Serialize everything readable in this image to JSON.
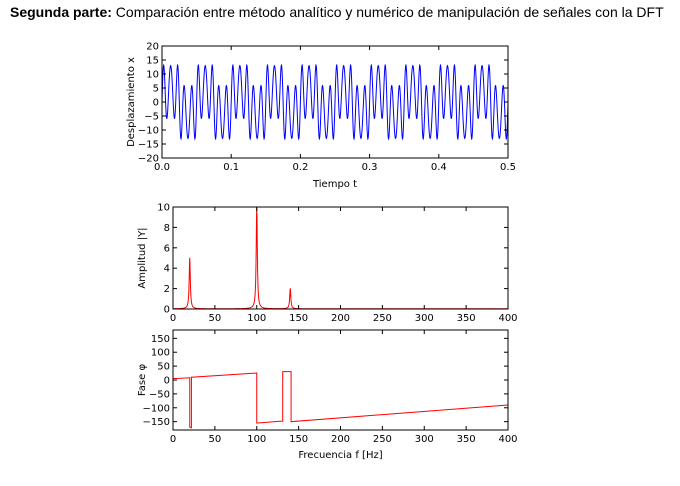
{
  "heading": {
    "bold": "Segunda parte:",
    "rest": "Comparación entre método analítico y numérico de manipulación de señales con la DFT"
  },
  "colors": {
    "signal": "#0000ff",
    "spectrum": "#ff0000"
  },
  "chart_data": [
    {
      "type": "line",
      "xlabel": "Tiempo t",
      "ylabel": "Desplazamiento x",
      "xlim": [
        0,
        0.5
      ],
      "ylim": [
        -20,
        20
      ],
      "xticks": [
        "0.0",
        "0.1",
        "0.2",
        "0.3",
        "0.4",
        "0.5"
      ],
      "yticks": [
        "20",
        "15",
        "10",
        "5",
        "0",
        "−5",
        "−10",
        "−15",
        "−20"
      ],
      "series": [
        {
          "components": [
            {
              "amplitude": 5,
              "frequency_hz": 20
            },
            {
              "amplitude": 10,
              "frequency_hz": 100
            },
            {
              "amplitude": 2,
              "frequency_hz": 140
            }
          ]
        }
      ]
    },
    {
      "type": "line",
      "xlabel": "",
      "ylabel": "Amplitud |Y|",
      "xlim": [
        0,
        400
      ],
      "ylim": [
        0,
        10
      ],
      "xticks": [
        "0",
        "50",
        "100",
        "150",
        "200",
        "250",
        "300",
        "350",
        "400"
      ],
      "yticks": [
        "10",
        "8",
        "6",
        "4",
        "2",
        "0"
      ],
      "series": [
        {
          "peaks": [
            {
              "x": 20,
              "y": 5
            },
            {
              "x": 100,
              "y": 10
            },
            {
              "x": 140,
              "y": 2
            }
          ]
        }
      ]
    },
    {
      "type": "line",
      "xlabel": "Frecuencia f [Hz]",
      "ylabel": "Fase φ",
      "xlim": [
        0,
        400
      ],
      "ylim": [
        -180,
        180
      ],
      "xticks": [
        "0",
        "50",
        "100",
        "150",
        "200",
        "250",
        "300",
        "350",
        "400"
      ],
      "yticks": [
        "150",
        "100",
        "50",
        "0",
        "−50",
        "−100",
        "−150"
      ],
      "series": [
        {
          "x": [
            0,
            15,
            20,
            20,
            21,
            22,
            22,
            100,
            100,
            101,
            130,
            131,
            131,
            140,
            141,
            141,
            400
          ],
          "y": [
            5,
            7,
            8,
            -170,
            -170,
            -172,
            10,
            25,
            -155,
            -155,
            -148,
            -148,
            30,
            30,
            30,
            -150,
            -90
          ]
        }
      ]
    }
  ]
}
